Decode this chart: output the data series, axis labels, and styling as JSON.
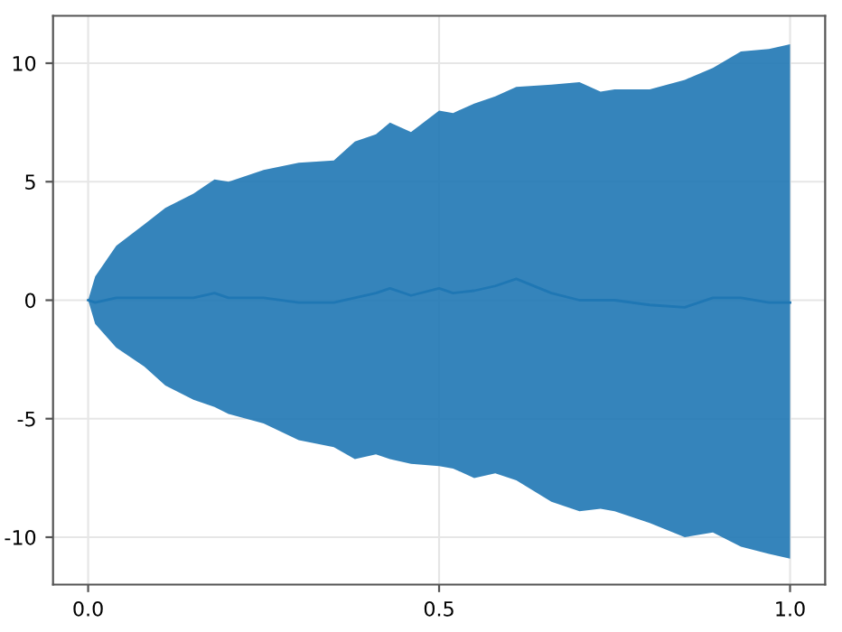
{
  "chart_data": {
    "type": "line",
    "x": [
      0,
      0.01,
      0.04,
      0.08,
      0.11,
      0.15,
      0.18,
      0.2,
      0.25,
      0.3,
      0.35,
      0.38,
      0.41,
      0.43,
      0.46,
      0.5,
      0.52,
      0.55,
      0.58,
      0.61,
      0.66,
      0.7,
      0.73,
      0.75,
      0.8,
      0.85,
      0.89,
      0.93,
      0.97,
      1.0
    ],
    "series": [
      {
        "color": "#1f77b4",
        "values": [
          0,
          -0.1,
          0.1,
          0.1,
          0.1,
          0.1,
          0.3,
          0.1,
          0.1,
          -0.1,
          -0.1,
          0.1,
          0.3,
          0.5,
          0.2,
          0.5,
          0.3,
          0.4,
          0.6,
          0.9,
          0.3,
          0.0,
          0.0,
          0.0,
          -0.2,
          -0.3,
          0.1,
          0.1,
          -0.1,
          -0.1
        ],
        "upper": [
          0,
          1.0,
          2.3,
          3.2,
          3.9,
          4.5,
          5.1,
          5.0,
          5.5,
          5.8,
          5.9,
          6.7,
          7.0,
          7.5,
          7.1,
          8.0,
          7.9,
          8.3,
          8.6,
          9.0,
          9.1,
          9.2,
          8.8,
          8.9,
          8.9,
          9.3,
          9.8,
          10.5,
          10.6,
          10.8
        ],
        "lower": [
          0,
          -1.0,
          -2.0,
          -2.8,
          -3.6,
          -4.2,
          -4.5,
          -4.8,
          -5.2,
          -5.9,
          -6.2,
          -6.7,
          -6.5,
          -6.7,
          -6.9,
          -7.0,
          -7.1,
          -7.5,
          -7.3,
          -7.6,
          -8.5,
          -8.9,
          -8.8,
          -8.9,
          -9.4,
          -10.0,
          -9.8,
          -10.4,
          -10.7,
          -10.9
        ]
      }
    ],
    "xlim": [
      -0.05,
      1.05
    ],
    "ylim": [
      -12,
      12
    ],
    "xticks": [
      {
        "value": 0,
        "label": "0.0"
      },
      {
        "value": 0.5,
        "label": "0.5"
      },
      {
        "value": 1.0,
        "label": "1.0"
      }
    ],
    "yticks": [
      -10,
      -5,
      0,
      5,
      10
    ],
    "grid": true,
    "line_style": "solid",
    "marker": "none"
  }
}
